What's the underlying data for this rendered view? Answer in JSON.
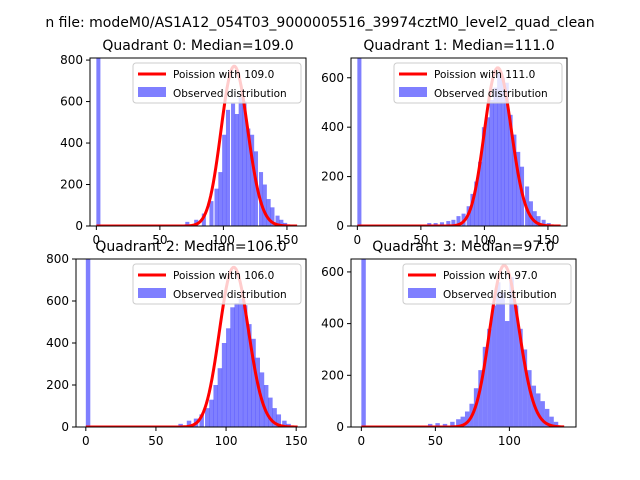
{
  "figure_title": "n file: modeM0/AS1A12_054T03_9000005516_39974cztM0_level2_quad_clean",
  "colors": {
    "histogram": "#0000ff",
    "poisson": "#ff0000",
    "axes": "#000000",
    "background": "#ffffff"
  },
  "chart_data": [
    {
      "type": "bar",
      "title": "Quadrant 0: Median=109.0",
      "xlim": [
        -5,
        165
      ],
      "ylim": [
        0,
        810
      ],
      "xticks": [
        0,
        50,
        100,
        150
      ],
      "yticks": [
        0,
        200,
        400,
        600,
        800
      ],
      "legend_position": "upper-right",
      "series": [
        {
          "name": "Poission with 109.0",
          "kind": "line",
          "lambda": 109.0,
          "peak": 770,
          "x_range": [
            0,
            158
          ]
        },
        {
          "name": "Observed distribution",
          "kind": "histogram",
          "bin_width": 3.2,
          "bins": [
            {
              "x": 0,
              "y": 810
            },
            {
              "x": 70,
              "y": 20
            },
            {
              "x": 77,
              "y": 30
            },
            {
              "x": 83,
              "y": 60
            },
            {
              "x": 89,
              "y": 120
            },
            {
              "x": 93,
              "y": 180
            },
            {
              "x": 96,
              "y": 260
            },
            {
              "x": 99,
              "y": 440
            },
            {
              "x": 102,
              "y": 560
            },
            {
              "x": 106,
              "y": 590
            },
            {
              "x": 109,
              "y": 540
            },
            {
              "x": 112,
              "y": 620
            },
            {
              "x": 115,
              "y": 600
            },
            {
              "x": 118,
              "y": 470
            },
            {
              "x": 121,
              "y": 440
            },
            {
              "x": 124,
              "y": 360
            },
            {
              "x": 128,
              "y": 260
            },
            {
              "x": 131,
              "y": 200
            },
            {
              "x": 134,
              "y": 130
            },
            {
              "x": 137,
              "y": 90
            },
            {
              "x": 141,
              "y": 50
            },
            {
              "x": 144,
              "y": 30
            },
            {
              "x": 147,
              "y": 15
            }
          ]
        }
      ]
    },
    {
      "type": "bar",
      "title": "Quadrant 1: Median=111.0",
      "xlim": [
        -5,
        165
      ],
      "ylim": [
        0,
        680
      ],
      "xticks": [
        0,
        50,
        100,
        150
      ],
      "yticks": [
        0,
        200,
        400,
        600
      ],
      "legend_position": "upper-right",
      "series": [
        {
          "name": "Poission with 111.0",
          "kind": "line",
          "lambda": 111.0,
          "peak": 640,
          "x_range": [
            0,
            160
          ]
        },
        {
          "name": "Observed distribution",
          "kind": "histogram",
          "bin_width": 3.2,
          "bins": [
            {
              "x": 0,
              "y": 680
            },
            {
              "x": 55,
              "y": 12
            },
            {
              "x": 60,
              "y": 12
            },
            {
              "x": 65,
              "y": 15
            },
            {
              "x": 70,
              "y": 20
            },
            {
              "x": 74,
              "y": 25
            },
            {
              "x": 78,
              "y": 40
            },
            {
              "x": 82,
              "y": 50
            },
            {
              "x": 86,
              "y": 80
            },
            {
              "x": 89,
              "y": 130
            },
            {
              "x": 92,
              "y": 180
            },
            {
              "x": 95,
              "y": 260
            },
            {
              "x": 98,
              "y": 400
            },
            {
              "x": 101,
              "y": 440
            },
            {
              "x": 104,
              "y": 510
            },
            {
              "x": 107,
              "y": 560
            },
            {
              "x": 110,
              "y": 620
            },
            {
              "x": 113,
              "y": 600
            },
            {
              "x": 116,
              "y": 580
            },
            {
              "x": 119,
              "y": 450
            },
            {
              "x": 122,
              "y": 370
            },
            {
              "x": 125,
              "y": 300
            },
            {
              "x": 128,
              "y": 240
            },
            {
              "x": 132,
              "y": 160
            },
            {
              "x": 135,
              "y": 100
            },
            {
              "x": 138,
              "y": 60
            },
            {
              "x": 141,
              "y": 40
            },
            {
              "x": 145,
              "y": 25
            },
            {
              "x": 149,
              "y": 12
            }
          ]
        }
      ]
    },
    {
      "type": "bar",
      "title": "Quadrant 2: Median=106.0",
      "xlim": [
        -7,
        157
      ],
      "ylim": [
        0,
        800
      ],
      "xticks": [
        0,
        50,
        100,
        150
      ],
      "yticks": [
        0,
        200,
        400,
        600,
        800
      ],
      "legend_position": "upper-right",
      "series": [
        {
          "name": "Poission with 106.0",
          "kind": "line",
          "lambda": 106.0,
          "peak": 760,
          "x_range": [
            0,
            151
          ]
        },
        {
          "name": "Observed distribution",
          "kind": "histogram",
          "bin_width": 3.2,
          "bins": [
            {
              "x": 0,
              "y": 800
            },
            {
              "x": 66,
              "y": 15
            },
            {
              "x": 72,
              "y": 30
            },
            {
              "x": 77,
              "y": 40
            },
            {
              "x": 81,
              "y": 60
            },
            {
              "x": 85,
              "y": 90
            },
            {
              "x": 88,
              "y": 130
            },
            {
              "x": 91,
              "y": 200
            },
            {
              "x": 94,
              "y": 280
            },
            {
              "x": 97,
              "y": 400
            },
            {
              "x": 100,
              "y": 470
            },
            {
              "x": 103,
              "y": 570
            },
            {
              "x": 106,
              "y": 590
            },
            {
              "x": 109,
              "y": 610
            },
            {
              "x": 112,
              "y": 580
            },
            {
              "x": 115,
              "y": 490
            },
            {
              "x": 118,
              "y": 420
            },
            {
              "x": 121,
              "y": 330
            },
            {
              "x": 124,
              "y": 260
            },
            {
              "x": 127,
              "y": 200
            },
            {
              "x": 130,
              "y": 140
            },
            {
              "x": 133,
              "y": 90
            },
            {
              "x": 136,
              "y": 60
            },
            {
              "x": 140,
              "y": 30
            },
            {
              "x": 143,
              "y": 15
            }
          ]
        }
      ]
    },
    {
      "type": "bar",
      "title": "Quadrant 3: Median=97.0",
      "xlim": [
        -7,
        145
      ],
      "ylim": [
        0,
        650
      ],
      "xticks": [
        0,
        50,
        100
      ],
      "yticks": [
        0,
        200,
        400,
        600
      ],
      "legend_position": "upper-right",
      "series": [
        {
          "name": "Poission with 97.0",
          "kind": "line",
          "lambda": 97.0,
          "peak": 625,
          "x_range": [
            0,
            137
          ]
        },
        {
          "name": "Observed distribution",
          "kind": "histogram",
          "bin_width": 3.0,
          "bins": [
            {
              "x": 0,
              "y": 650
            },
            {
              "x": 45,
              "y": 12
            },
            {
              "x": 50,
              "y": 15
            },
            {
              "x": 55,
              "y": 12
            },
            {
              "x": 60,
              "y": 20
            },
            {
              "x": 64,
              "y": 30
            },
            {
              "x": 67,
              "y": 40
            },
            {
              "x": 70,
              "y": 60
            },
            {
              "x": 73,
              "y": 90
            },
            {
              "x": 76,
              "y": 150
            },
            {
              "x": 79,
              "y": 220
            },
            {
              "x": 82,
              "y": 310
            },
            {
              "x": 85,
              "y": 380
            },
            {
              "x": 88,
              "y": 470
            },
            {
              "x": 91,
              "y": 560
            },
            {
              "x": 94,
              "y": 520
            },
            {
              "x": 97,
              "y": 410
            },
            {
              "x": 100,
              "y": 580
            },
            {
              "x": 103,
              "y": 470
            },
            {
              "x": 106,
              "y": 380
            },
            {
              "x": 109,
              "y": 300
            },
            {
              "x": 112,
              "y": 220
            },
            {
              "x": 115,
              "y": 160
            },
            {
              "x": 118,
              "y": 130
            },
            {
              "x": 121,
              "y": 100
            },
            {
              "x": 124,
              "y": 70
            },
            {
              "x": 127,
              "y": 40
            },
            {
              "x": 130,
              "y": 20
            }
          ]
        }
      ]
    }
  ]
}
